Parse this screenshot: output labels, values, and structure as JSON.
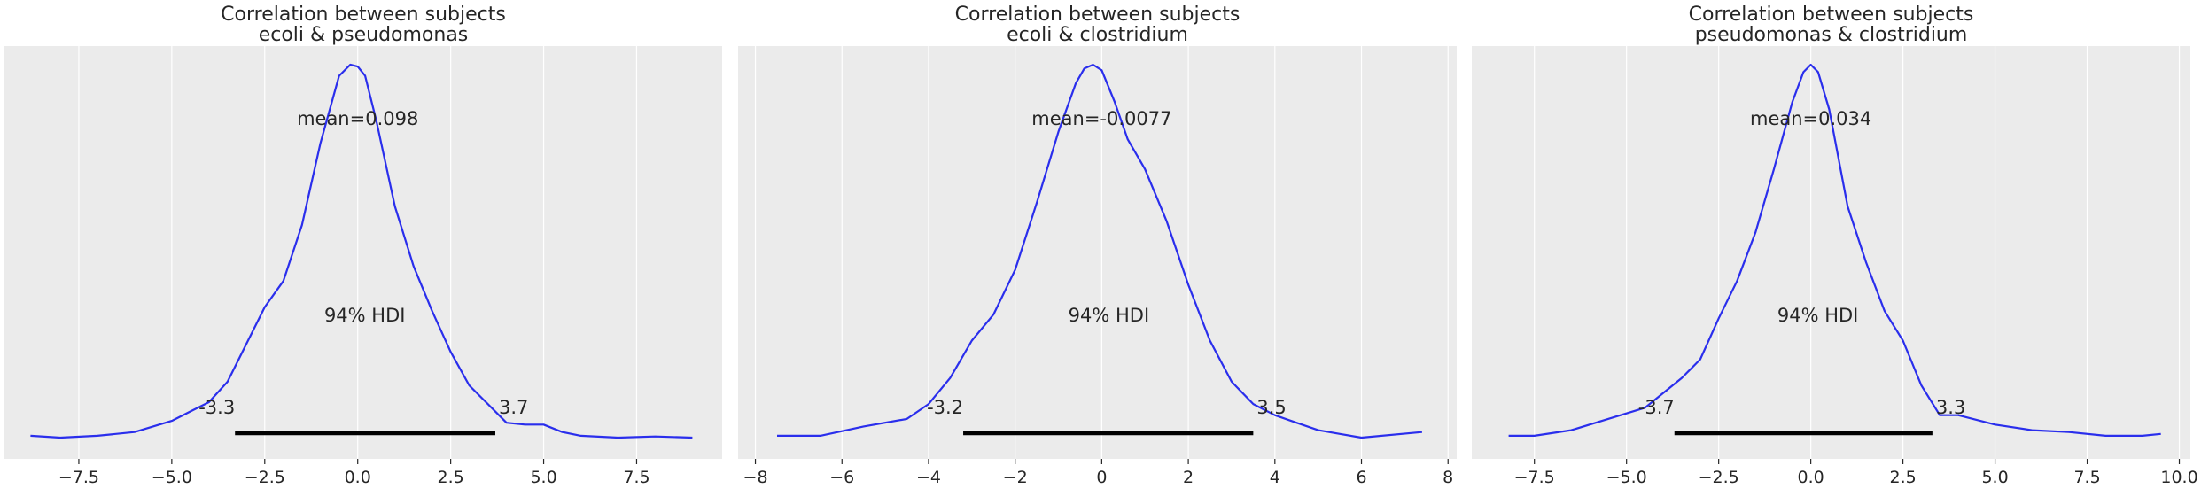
{
  "chart_data": [
    {
      "type": "line",
      "title_line1": "Correlation between subjects",
      "title_line2": "ecoli & pseudomonas",
      "xlim": [
        -9.5,
        9.8
      ],
      "ticks": [
        -7.5,
        -5.0,
        -2.5,
        0.0,
        2.5,
        5.0,
        7.5
      ],
      "tick_labels": [
        "−7.5",
        "−5.0",
        "−2.5",
        "0.0",
        "2.5",
        "5.0",
        "7.5"
      ],
      "mean_label": "mean=0.098",
      "hdi_label": "94% HDI",
      "hdi": [
        -3.3,
        3.7
      ],
      "hdi_low_label": "-3.3",
      "hdi_high_label": "3.7",
      "density": {
        "x": [
          -8.8,
          -8.0,
          -7.0,
          -6.0,
          -5.0,
          -4.5,
          -4.0,
          -3.5,
          -3.0,
          -2.5,
          -2.0,
          -1.5,
          -1.0,
          -0.5,
          -0.2,
          0.0,
          0.2,
          0.5,
          1.0,
          1.5,
          2.0,
          2.5,
          3.0,
          3.5,
          4.0,
          4.5,
          5.0,
          5.5,
          6.0,
          7.0,
          8.0,
          9.0
        ],
        "y": [
          0.005,
          0.0,
          0.005,
          0.015,
          0.045,
          0.07,
          0.095,
          0.15,
          0.25,
          0.35,
          0.42,
          0.57,
          0.79,
          0.97,
          1.0,
          0.995,
          0.97,
          0.85,
          0.62,
          0.46,
          0.34,
          0.23,
          0.14,
          0.09,
          0.04,
          0.035,
          0.035,
          0.015,
          0.005,
          0.0,
          0.003,
          0.0
        ]
      }
    },
    {
      "type": "line",
      "title_line1": "Correlation between subjects",
      "title_line2": "ecoli & clostridium",
      "xlim": [
        -8.4,
        8.2
      ],
      "ticks": [
        -8,
        -6,
        -4,
        -2,
        0,
        2,
        4,
        6,
        8
      ],
      "tick_labels": [
        "−8",
        "−6",
        "−4",
        "−2",
        "0",
        "2",
        "4",
        "6",
        "8"
      ],
      "mean_label": "mean=-0.0077",
      "hdi_label": "94% HDI",
      "hdi": [
        -3.2,
        3.5
      ],
      "hdi_low_label": "-3.2",
      "hdi_high_label": "3.5",
      "density": {
        "x": [
          -7.5,
          -6.5,
          -5.5,
          -4.5,
          -4.0,
          -3.5,
          -3.0,
          -2.5,
          -2.0,
          -1.5,
          -1.0,
          -0.6,
          -0.4,
          -0.2,
          0.0,
          0.3,
          0.6,
          1.0,
          1.5,
          2.0,
          2.5,
          3.0,
          3.5,
          4.0,
          4.5,
          5.0,
          5.5,
          6.0,
          7.4
        ],
        "y": [
          0.005,
          0.005,
          0.03,
          0.05,
          0.09,
          0.16,
          0.26,
          0.33,
          0.45,
          0.63,
          0.82,
          0.95,
          0.99,
          1.0,
          0.985,
          0.9,
          0.8,
          0.72,
          0.58,
          0.41,
          0.26,
          0.15,
          0.09,
          0.06,
          0.04,
          0.02,
          0.01,
          0.0,
          0.015
        ]
      }
    },
    {
      "type": "line",
      "title_line1": "Correlation between subjects",
      "title_line2": "pseudomonas & clostridium",
      "xlim": [
        -9.2,
        10.3
      ],
      "ticks": [
        -7.5,
        -5.0,
        -2.5,
        0.0,
        2.5,
        5.0,
        7.5,
        10.0
      ],
      "tick_labels": [
        "−7.5",
        "−5.0",
        "−2.5",
        "0.0",
        "2.5",
        "5.0",
        "7.5",
        "10.0"
      ],
      "mean_label": "mean=0.034",
      "hdi_label": "94% HDI",
      "hdi": [
        -3.7,
        3.3
      ],
      "hdi_low_label": "-3.7",
      "hdi_high_label": "3.3",
      "density": {
        "x": [
          -8.2,
          -7.5,
          -6.5,
          -5.5,
          -4.5,
          -4.0,
          -3.5,
          -3.0,
          -2.5,
          -2.0,
          -1.5,
          -1.0,
          -0.5,
          -0.2,
          0.0,
          0.2,
          0.5,
          1.0,
          1.5,
          2.0,
          2.5,
          3.0,
          3.5,
          4.0,
          5.0,
          6.0,
          7.0,
          8.0,
          9.0,
          9.5
        ],
        "y": [
          0.005,
          0.005,
          0.02,
          0.05,
          0.08,
          0.12,
          0.16,
          0.21,
          0.32,
          0.42,
          0.55,
          0.72,
          0.9,
          0.98,
          1.0,
          0.98,
          0.88,
          0.62,
          0.47,
          0.34,
          0.26,
          0.14,
          0.06,
          0.06,
          0.035,
          0.02,
          0.015,
          0.005,
          0.005,
          0.01
        ]
      }
    }
  ]
}
